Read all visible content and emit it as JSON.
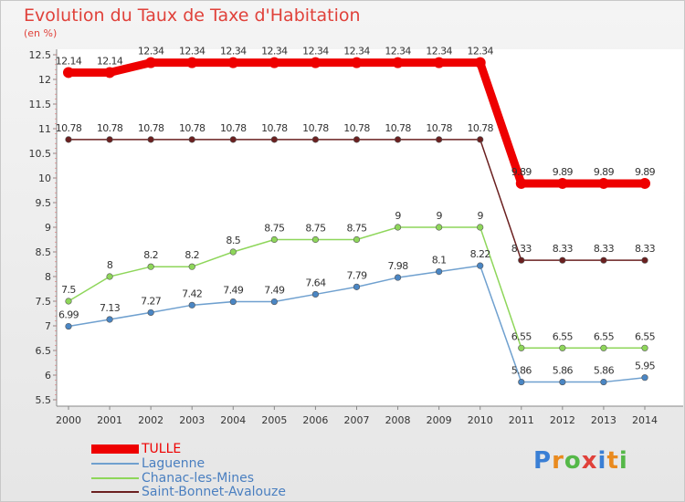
{
  "title": "Evolution du Taux de Taxe d'Habitation",
  "unit_label": "(en %)",
  "logo": {
    "text": "Proxiti",
    "colors": [
      "#3a7fd5",
      "#e98a1e",
      "#55b848",
      "#e0413a",
      "#3a7fd5",
      "#e98a1e",
      "#55b848"
    ]
  },
  "chart_data": {
    "type": "line",
    "title": "Evolution du Taux de Taxe d'Habitation",
    "ylabel": "(en %)",
    "xlabel": "",
    "ylim": [
      5.5,
      12.5
    ],
    "yticks": [
      5.5,
      6,
      6.5,
      7,
      7.5,
      8,
      8.5,
      9,
      9.5,
      10,
      10.5,
      11,
      11.5,
      12,
      12.5
    ],
    "ytick_labels": [
      "5.5",
      "6",
      "6.5",
      "7",
      "7.5",
      "8",
      "8.5",
      "9",
      "9.5",
      "10",
      "10.5",
      "11",
      "11.5",
      "12",
      "12.5"
    ],
    "x": [
      "2000",
      "2001",
      "2002",
      "2003",
      "2004",
      "2005",
      "2006",
      "2007",
      "2008",
      "2009",
      "2010",
      "2011",
      "2012",
      "2013",
      "2014"
    ],
    "series": [
      {
        "name": "Saint-Bonnet-Avalouze",
        "color": "#6b2020",
        "marker": "#6b2020",
        "values": [
          10.78,
          10.78,
          10.78,
          10.78,
          10.78,
          10.78,
          10.78,
          10.78,
          10.78,
          10.78,
          10.78,
          8.33,
          8.33,
          8.33,
          8.33
        ],
        "labels": [
          "10.78",
          "10.78",
          "10.78",
          "10.78",
          "10.78",
          "10.78",
          "10.78",
          "10.78",
          "10.78",
          "10.78",
          "10.78",
          "8.33",
          "8.33",
          "8.33",
          "8.33"
        ]
      },
      {
        "name": "Chanac-les-Mines",
        "color": "#8ed65a",
        "marker": "#8ed65a",
        "values": [
          7.5,
          8,
          8.2,
          8.2,
          8.5,
          8.75,
          8.75,
          8.75,
          9,
          9,
          9,
          6.55,
          6.55,
          6.55,
          6.55
        ],
        "labels": [
          "7.5",
          "8",
          "8.2",
          "8.2",
          "8.5",
          "8.75",
          "8.75",
          "8.75",
          "9",
          "9",
          "9",
          "6.55",
          "6.55",
          "6.55",
          "6.55"
        ]
      },
      {
        "name": "Laguenne",
        "color": "#6fa0cf",
        "marker": "#4a86c4",
        "values": [
          6.99,
          7.13,
          7.27,
          7.42,
          7.49,
          7.49,
          7.64,
          7.79,
          7.98,
          8.1,
          8.22,
          5.86,
          5.86,
          5.86,
          5.95
        ],
        "labels": [
          "6.99",
          "7.13",
          "7.27",
          "7.42",
          "7.49",
          "7.49",
          "7.64",
          "7.79",
          "7.98",
          "8.1",
          "8.22",
          "5.86",
          "5.86",
          "5.86",
          "5.95"
        ]
      },
      {
        "name": "TULLE",
        "color": "#ee0000",
        "marker": "#ee0000",
        "values": [
          12.14,
          12.14,
          12.34,
          12.34,
          12.34,
          12.34,
          12.34,
          12.34,
          12.34,
          12.34,
          12.34,
          9.89,
          9.89,
          9.89,
          9.89
        ],
        "labels": [
          "12.14",
          "12.14",
          "12.34",
          "12.34",
          "12.34",
          "12.34",
          "12.34",
          "12.34",
          "12.34",
          "12.34",
          "12.34",
          "9.89",
          "9.89",
          "9.89",
          "9.89"
        ]
      }
    ],
    "legend": [
      "TULLE",
      "Laguenne",
      "Chanac-les-Mines",
      "Saint-Bonnet-Avalouze"
    ],
    "legend_position": "bottom-left",
    "grid": false
  }
}
